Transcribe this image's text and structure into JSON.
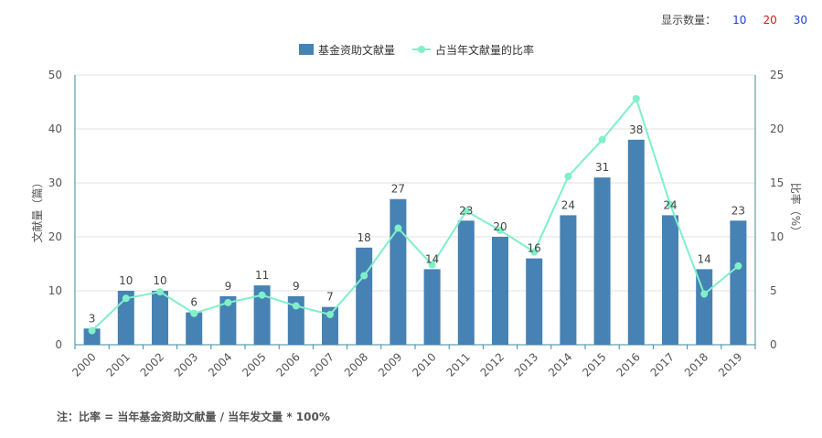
{
  "controls": {
    "display_count_label": "显示数量：",
    "options": [
      "10",
      "20",
      "30"
    ]
  },
  "chart_data": {
    "type": "bar",
    "categories": [
      "2000",
      "2001",
      "2002",
      "2003",
      "2004",
      "2005",
      "2006",
      "2007",
      "2008",
      "2009",
      "2010",
      "2011",
      "2012",
      "2013",
      "2014",
      "2015",
      "2016",
      "2017",
      "2018",
      "2019"
    ],
    "series": [
      {
        "name": "基金资助文献量",
        "type": "bar",
        "axis": "left",
        "color": "#4682b4",
        "values": [
          3,
          10,
          10,
          6,
          9,
          11,
          9,
          7,
          18,
          27,
          14,
          23,
          20,
          16,
          24,
          31,
          38,
          24,
          14,
          23
        ]
      },
      {
        "name": "占当年文献量的比率",
        "type": "line",
        "axis": "right",
        "color": "#7ff0c8",
        "values": [
          1.3,
          4.3,
          4.9,
          2.9,
          3.9,
          4.6,
          3.6,
          2.8,
          6.4,
          10.8,
          7.4,
          12.4,
          10.6,
          8.6,
          15.6,
          19.0,
          22.8,
          13.0,
          4.7,
          7.3
        ]
      }
    ],
    "ylabel": "文献量（篇）",
    "ylabel_right": "比率（%）",
    "ylim": [
      0,
      50
    ],
    "ylim_right": [
      0,
      25
    ],
    "yticks": [
      0,
      10,
      20,
      30,
      40,
      50
    ],
    "yticks_right": [
      0,
      5,
      10,
      15,
      20,
      25
    ],
    "grid": true,
    "legend_position": "top-center"
  },
  "note": "注：比率 = 当年基金资助文献量 / 当年发文量 * 100%"
}
